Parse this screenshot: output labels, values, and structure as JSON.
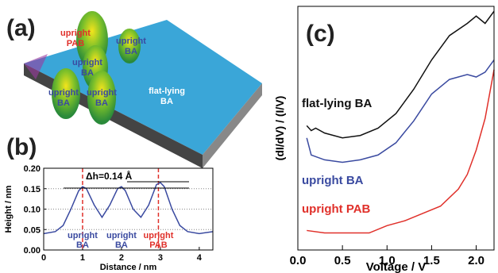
{
  "image": {
    "label": "(a)",
    "annotations": [
      [
        "upright",
        "PAB"
      ],
      [
        "upright",
        "BA"
      ],
      [
        "upright",
        "BA"
      ],
      [
        "upright",
        "BA"
      ],
      [
        "upright",
        "BA"
      ],
      [
        "flat-lying",
        "BA"
      ]
    ]
  },
  "chart_data": [
    {
      "type": "line",
      "label": "(b)",
      "x_label": "Distance / nm",
      "y_label": "Height / nm",
      "xlim": [
        0,
        4.35
      ],
      "ylim": [
        0,
        0.2
      ],
      "xticks": [
        0,
        1,
        2,
        3,
        4
      ],
      "yticks": [
        {
          "value": 0,
          "label": "0.00"
        },
        {
          "value": 0.05,
          "label": "0.05"
        },
        {
          "value": 0.1,
          "label": "0.10"
        },
        {
          "value": 0.15,
          "label": "0.15"
        },
        {
          "value": 0.2,
          "label": "0.20"
        }
      ],
      "grid": true,
      "markers": [
        1,
        2.95
      ],
      "marker_color": "#e0302a",
      "annotation": "Δh=0.14 Å",
      "peak_labels": [
        {
          "lines": [
            "upright",
            "BA"
          ],
          "color": "#3a4aa0"
        },
        {
          "lines": [
            "upright",
            "BA"
          ],
          "color": "#3a4aa0"
        },
        {
          "lines": [
            "upright",
            "PAB"
          ],
          "color": "#e0302a"
        }
      ],
      "series": [
        {
          "color": "#3a4aa0",
          "x": [
            0,
            0.3,
            0.5,
            0.7,
            0.9,
            1.0,
            1.1,
            1.3,
            1.5,
            1.7,
            1.9,
            2.0,
            2.1,
            2.3,
            2.5,
            2.7,
            2.9,
            3.0,
            3.1,
            3.3,
            3.5,
            3.7,
            4.0,
            4.35
          ],
          "values": [
            0.04,
            0.045,
            0.06,
            0.1,
            0.145,
            0.155,
            0.15,
            0.11,
            0.08,
            0.11,
            0.15,
            0.155,
            0.145,
            0.1,
            0.08,
            0.11,
            0.16,
            0.165,
            0.155,
            0.1,
            0.06,
            0.045,
            0.04,
            0.045
          ]
        }
      ]
    },
    {
      "type": "line",
      "label": "(c)",
      "x_label": "Voltage / V",
      "y_label": "(dI/dV) / (I/V)",
      "xlim": [
        0,
        2.2
      ],
      "ylim": [
        0,
        10
      ],
      "xticks": [
        {
          "value": 0,
          "label": "0.0"
        },
        0.5,
        {
          "value": 1,
          "label": "1.0"
        },
        1.5,
        {
          "value": 2,
          "label": "2.0"
        }
      ],
      "series": [
        {
          "name": "flat-lying BA",
          "color": "#111111",
          "x": [
            0.1,
            0.15,
            0.2,
            0.3,
            0.5,
            0.7,
            0.9,
            1.1,
            1.3,
            1.5,
            1.7,
            1.9,
            2.0,
            2.1,
            2.2
          ],
          "values": [
            5.1,
            4.9,
            5.0,
            4.8,
            4.6,
            4.7,
            5.0,
            5.6,
            6.6,
            7.8,
            8.8,
            9.3,
            9.6,
            9.3,
            9.8
          ]
        },
        {
          "name": "upright BA",
          "color": "#3a4aa0",
          "x": [
            0.1,
            0.15,
            0.3,
            0.5,
            0.7,
            0.9,
            1.1,
            1.3,
            1.5,
            1.7,
            1.9,
            2.0,
            2.1,
            2.2
          ],
          "values": [
            4.6,
            3.9,
            3.7,
            3.6,
            3.7,
            3.9,
            4.4,
            5.3,
            6.4,
            7.0,
            7.2,
            7.1,
            7.3,
            7.8
          ]
        },
        {
          "name": "upright PAB",
          "color": "#e0302a",
          "x": [
            0.1,
            0.3,
            0.5,
            0.8,
            1.0,
            1.2,
            1.4,
            1.6,
            1.8,
            1.9,
            2.0,
            2.1,
            2.2
          ],
          "values": [
            0.8,
            0.7,
            0.7,
            0.7,
            1.0,
            1.2,
            1.5,
            1.8,
            2.5,
            3.1,
            4.1,
            5.4,
            7.4
          ]
        }
      ]
    }
  ]
}
